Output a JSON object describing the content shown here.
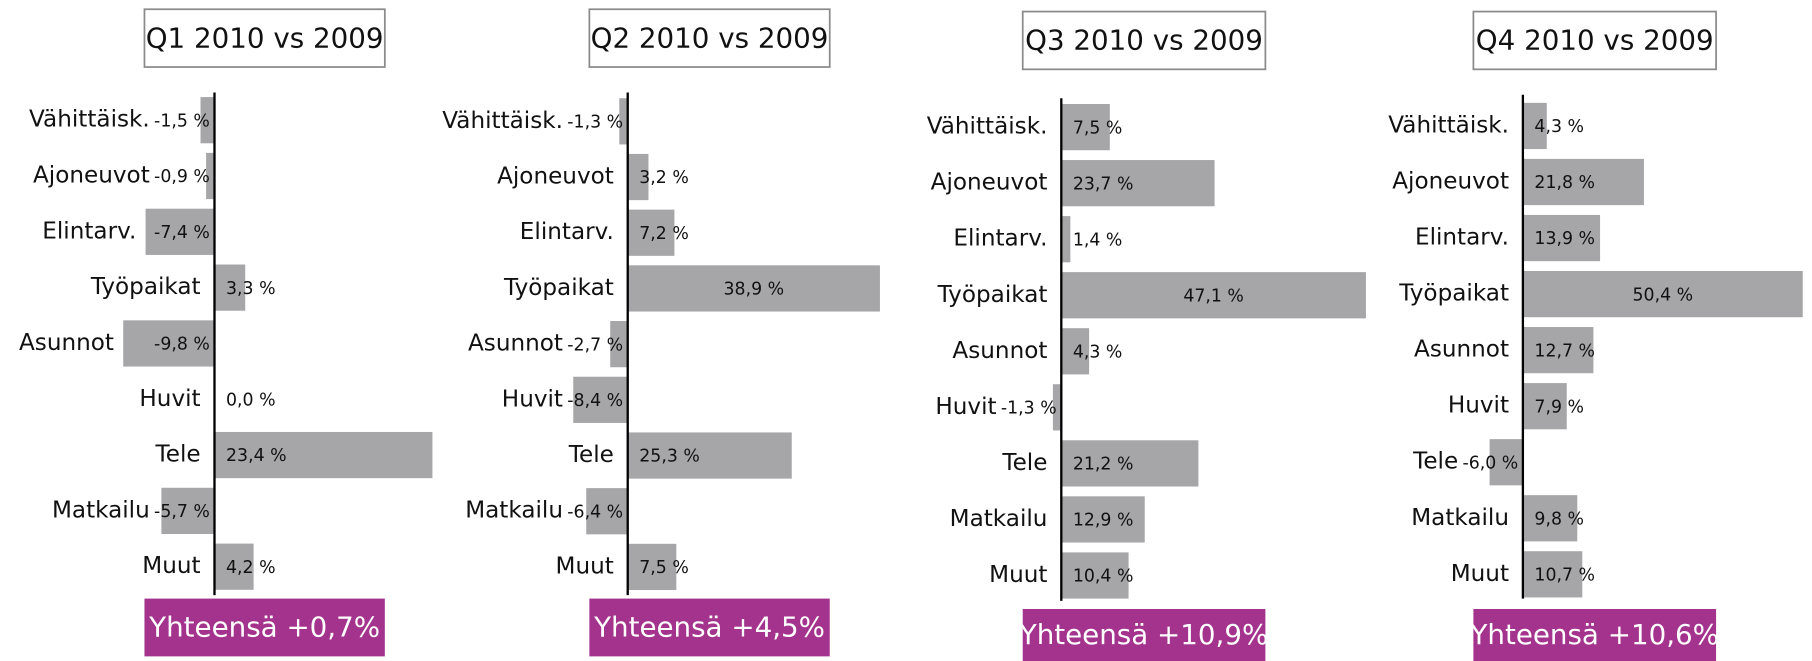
{
  "chart_data": [
    {
      "type": "bar",
      "orientation": "horizontal",
      "title": "Q1 2010 vs 2009",
      "categories": [
        "Vähittäisk.",
        "Ajoneuvot",
        "Elintarv.",
        "Työpaikat",
        "Asunnot",
        "Huvit",
        "Tele",
        "Matkailu",
        "Muut"
      ],
      "values": [
        -1.5,
        -0.9,
        -7.4,
        3.3,
        -9.8,
        0.0,
        23.4,
        -5.7,
        4.2
      ],
      "value_labels": [
        "-1,5 %",
        "-0,9 %",
        "-7,4 %",
        "3,3 %",
        "-9,8 %",
        "0,0 %",
        "23,4 %",
        "-5,7 %",
        "4,2 %"
      ],
      "color": "#a6a6a8",
      "xlim": [
        -10,
        23.5
      ],
      "annotation": "Yhteensä +0,7%"
    },
    {
      "type": "bar",
      "orientation": "horizontal",
      "title": "Q2 2010 vs 2009",
      "categories": [
        "Vähittäisk.",
        "Ajoneuvot",
        "Elintarv.",
        "Työpaikat",
        "Asunnot",
        "Huvit",
        "Tele",
        "Matkailu",
        "Muut"
      ],
      "values": [
        -1.3,
        3.2,
        7.2,
        38.9,
        -2.7,
        -8.4,
        25.3,
        -6.4,
        7.5
      ],
      "value_labels": [
        "-1,3 %",
        "3,2 %",
        "7,2 %",
        "38,9 %",
        "-2,7 %",
        "-8,4 %",
        "25,3 %",
        "-6,4 %",
        "7,5 %"
      ],
      "color": "#a6a6a8",
      "xlim": [
        -8.5,
        39
      ],
      "annotation": "Yhteensä +4,5%"
    },
    {
      "type": "bar",
      "orientation": "horizontal",
      "title": "Q3 2010 vs 2009",
      "categories": [
        "Vähittäisk.",
        "Ajoneuvot",
        "Elintarv.",
        "Työpaikat",
        "Asunnot",
        "Huvit",
        "Tele",
        "Matkailu",
        "Muut"
      ],
      "values": [
        7.5,
        23.7,
        1.4,
        47.1,
        4.3,
        -1.3,
        21.2,
        12.9,
        10.4
      ],
      "value_labels": [
        "7,5 %",
        "23,7 %",
        "1,4 %",
        "47,1 %",
        "4,3 %",
        "-1,3 %",
        "21,2 %",
        "12,9 %",
        "10,4 %"
      ],
      "color": "#a6a6a8",
      "xlim": [
        -1.5,
        47.1
      ],
      "annotation": "Yhteensä +10,9%"
    },
    {
      "type": "bar",
      "orientation": "horizontal",
      "title": "Q4 2010 vs 2009",
      "categories": [
        "Vähittäisk.",
        "Ajoneuvot",
        "Elintarv.",
        "Työpaikat",
        "Asunnot",
        "Huvit",
        "Tele",
        "Matkailu",
        "Muut"
      ],
      "values": [
        4.3,
        21.8,
        13.9,
        50.4,
        12.7,
        7.9,
        -6.0,
        9.8,
        10.7
      ],
      "value_labels": [
        "4,3 %",
        "21,8 %",
        "13,9 %",
        "50,4 %",
        "12,7 %",
        "7,9 %",
        "-6,0 %",
        "9,8 %",
        "10,7 %"
      ],
      "color": "#a6a6a8",
      "xlim": [
        -6,
        50.4
      ],
      "annotation": "Yhteensä +10,6%"
    }
  ]
}
